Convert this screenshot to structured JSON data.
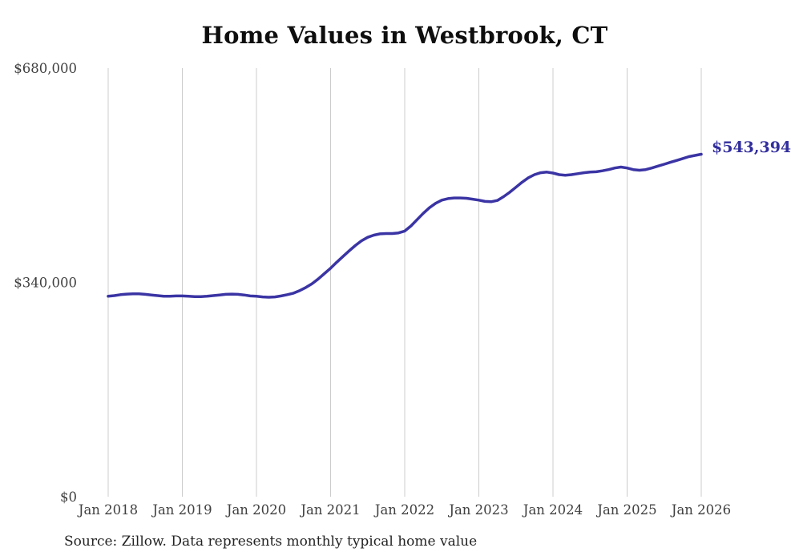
{
  "title": "Home Values in Westbrook, CT",
  "end_label": "$543,394",
  "source_note": "Source: Zillow. Data represents monthly typical home value",
  "colors": {
    "line": "#3a34a4",
    "end_label_text": "#322e9d",
    "gridline": "#cccccc",
    "tick_text": "#404040",
    "title_text": "#0e0e0e",
    "source_text": "#232323",
    "background": "#ffffff"
  },
  "chart_data": {
    "type": "line",
    "title": "Home Values in Westbrook, CT",
    "xlabel": "",
    "ylabel": "",
    "ylim": [
      0,
      680000
    ],
    "grid": "vertical-only",
    "legend": "none",
    "interval": "monthly",
    "x_start_month": "2018-01",
    "x_end_month": "2026-01",
    "x_tick_labels": [
      "Jan 2018",
      "Jan 2019",
      "Jan 2020",
      "Jan 2021",
      "Jan 2022",
      "Jan 2023",
      "Jan 2024",
      "Jan 2025",
      "Jan 2026"
    ],
    "y_ticks": [
      {
        "label": "$0",
        "value": 0
      },
      {
        "label": "$340,000",
        "value": 340000
      },
      {
        "label": "$680,000",
        "value": 680000
      }
    ],
    "final_value": 543394,
    "series": [
      {
        "name": "Typical home value",
        "months": [
          "2018-01",
          "2018-02",
          "2018-03",
          "2018-04",
          "2018-05",
          "2018-06",
          "2018-07",
          "2018-08",
          "2018-09",
          "2018-10",
          "2018-11",
          "2018-12",
          "2019-01",
          "2019-02",
          "2019-03",
          "2019-04",
          "2019-05",
          "2019-06",
          "2019-07",
          "2019-08",
          "2019-09",
          "2019-10",
          "2019-11",
          "2019-12",
          "2020-01",
          "2020-02",
          "2020-03",
          "2020-04",
          "2020-05",
          "2020-06",
          "2020-07",
          "2020-08",
          "2020-09",
          "2020-10",
          "2020-11",
          "2020-12",
          "2021-01",
          "2021-02",
          "2021-03",
          "2021-04",
          "2021-05",
          "2021-06",
          "2021-07",
          "2021-08",
          "2021-09",
          "2021-10",
          "2021-11",
          "2021-12",
          "2022-01",
          "2022-02",
          "2022-03",
          "2022-04",
          "2022-05",
          "2022-06",
          "2022-07",
          "2022-08",
          "2022-09",
          "2022-10",
          "2022-11",
          "2022-12",
          "2023-01",
          "2023-02",
          "2023-03",
          "2023-04",
          "2023-05",
          "2023-06",
          "2023-07",
          "2023-08",
          "2023-09",
          "2023-10",
          "2023-11",
          "2023-12",
          "2024-01",
          "2024-02",
          "2024-03",
          "2024-04",
          "2024-05",
          "2024-06",
          "2024-07",
          "2024-08",
          "2024-09",
          "2024-10",
          "2024-11",
          "2024-12",
          "2025-01",
          "2025-02",
          "2025-03",
          "2025-04",
          "2025-05",
          "2025-06",
          "2025-07",
          "2025-08",
          "2025-09",
          "2025-10",
          "2025-11",
          "2025-12",
          "2026-01"
        ],
        "values": [
          318000,
          319000,
          320500,
          321500,
          322000,
          322000,
          321000,
          320000,
          319000,
          318000,
          318000,
          318500,
          318500,
          318000,
          317500,
          317500,
          318000,
          319000,
          320000,
          321000,
          321500,
          321000,
          320000,
          318500,
          318000,
          317000,
          316500,
          317000,
          318500,
          320500,
          323000,
          327000,
          332000,
          338000,
          345500,
          354000,
          362500,
          372000,
          381000,
          390000,
          398500,
          406000,
          411500,
          415000,
          417000,
          417500,
          417500,
          418500,
          421500,
          429500,
          439500,
          449500,
          458500,
          465500,
          470500,
          473000,
          474000,
          474000,
          473500,
          472000,
          470500,
          468500,
          468000,
          470000,
          476000,
          483000,
          491000,
          499000,
          506000,
          511000,
          514000,
          515000,
          513500,
          511000,
          510000,
          511000,
          512500,
          514000,
          515000,
          515500,
          517000,
          519000,
          521500,
          523000,
          521500,
          519000,
          518000,
          519000,
          521500,
          524500,
          527500,
          530500,
          533500,
          536500,
          539500,
          541500,
          543394
        ]
      }
    ]
  }
}
